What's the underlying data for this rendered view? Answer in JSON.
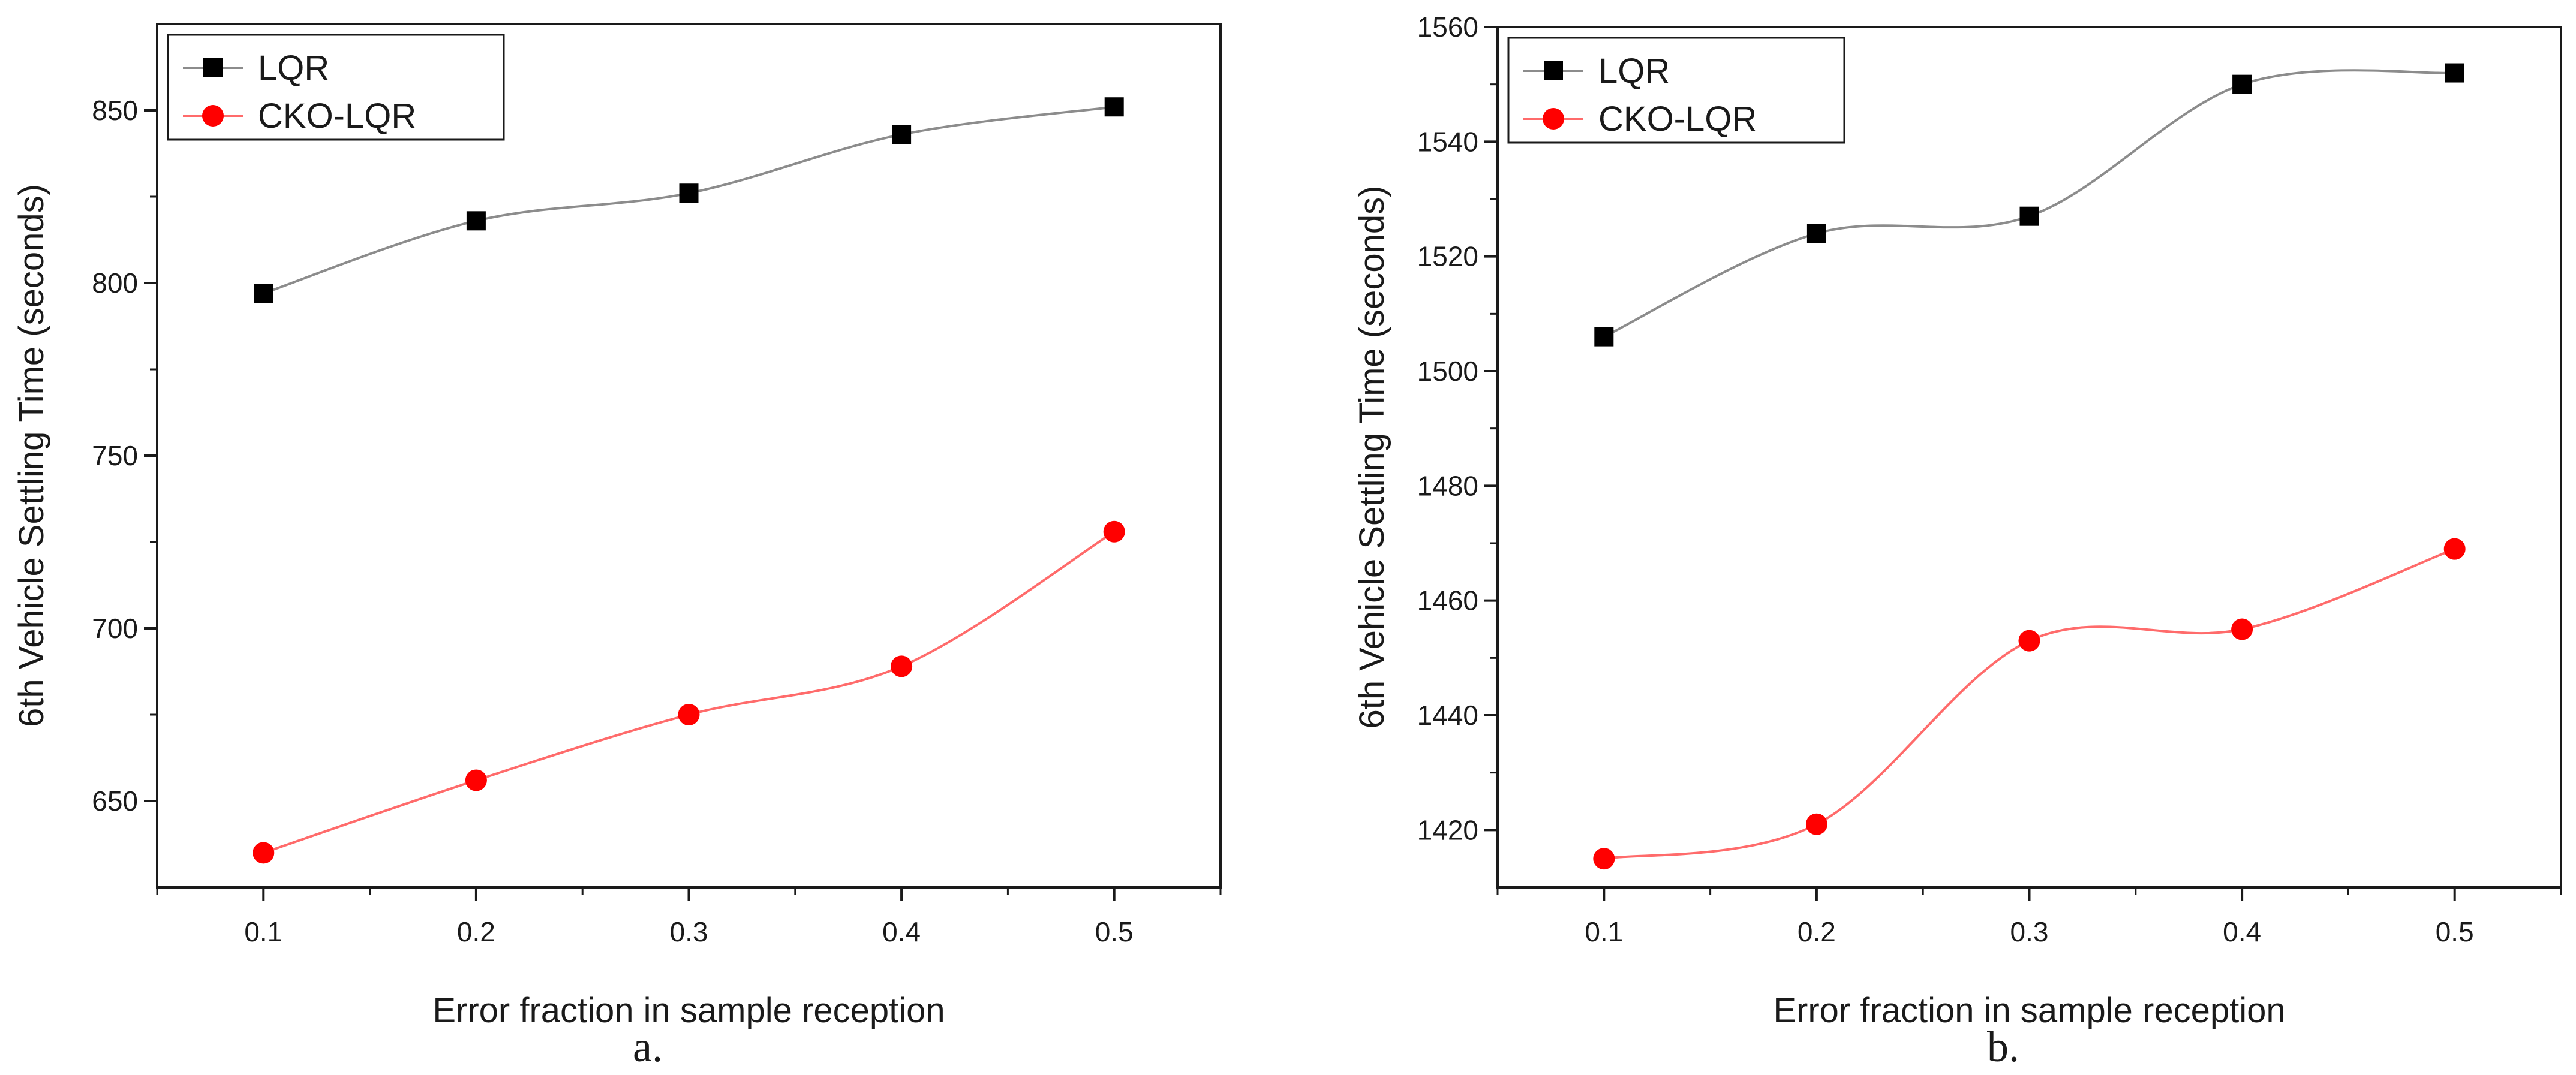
{
  "chart_data": [
    {
      "type": "line",
      "caption": "a.",
      "xlabel": "Error fraction in sample reception",
      "ylabel": "6th Vehicle Settling Time (seconds)",
      "x": [
        0.1,
        0.2,
        0.3,
        0.4,
        0.5
      ],
      "x_ticks": [
        "0.1",
        "0.2",
        "0.3",
        "0.4",
        "0.5"
      ],
      "xlim": [
        0.05,
        0.55
      ],
      "ylim": [
        625,
        875
      ],
      "y_ticks": [
        650,
        700,
        750,
        800,
        850
      ],
      "legend_position": "top-left",
      "series": [
        {
          "name": "LQR",
          "marker": "square",
          "color": "#000000",
          "line_color": "#8c8c8c",
          "values": [
            797,
            818,
            826,
            843,
            851
          ]
        },
        {
          "name": "CKO-LQR",
          "marker": "circle",
          "color": "#ff0000",
          "line_color": "#ff6b6b",
          "values": [
            635,
            656,
            675,
            689,
            728
          ]
        }
      ]
    },
    {
      "type": "line",
      "caption": "b.",
      "xlabel": "Error fraction in sample reception",
      "ylabel": "6th Vehicle Settling Time (seconds)",
      "x": [
        0.1,
        0.2,
        0.3,
        0.4,
        0.5
      ],
      "x_ticks": [
        "0.1",
        "0.2",
        "0.3",
        "0.4",
        "0.5"
      ],
      "xlim": [
        0.05,
        0.55
      ],
      "ylim": [
        1410,
        1560
      ],
      "y_ticks": [
        1420,
        1440,
        1460,
        1480,
        1500,
        1520,
        1540,
        1560
      ],
      "legend_position": "top-left",
      "series": [
        {
          "name": "LQR",
          "marker": "square",
          "color": "#000000",
          "line_color": "#8c8c8c",
          "values": [
            1506,
            1524,
            1527,
            1550,
            1552
          ]
        },
        {
          "name": "CKO-LQR",
          "marker": "circle",
          "color": "#ff0000",
          "line_color": "#ff6b6b",
          "values": [
            1415,
            1421,
            1453,
            1455,
            1469
          ]
        }
      ]
    }
  ]
}
